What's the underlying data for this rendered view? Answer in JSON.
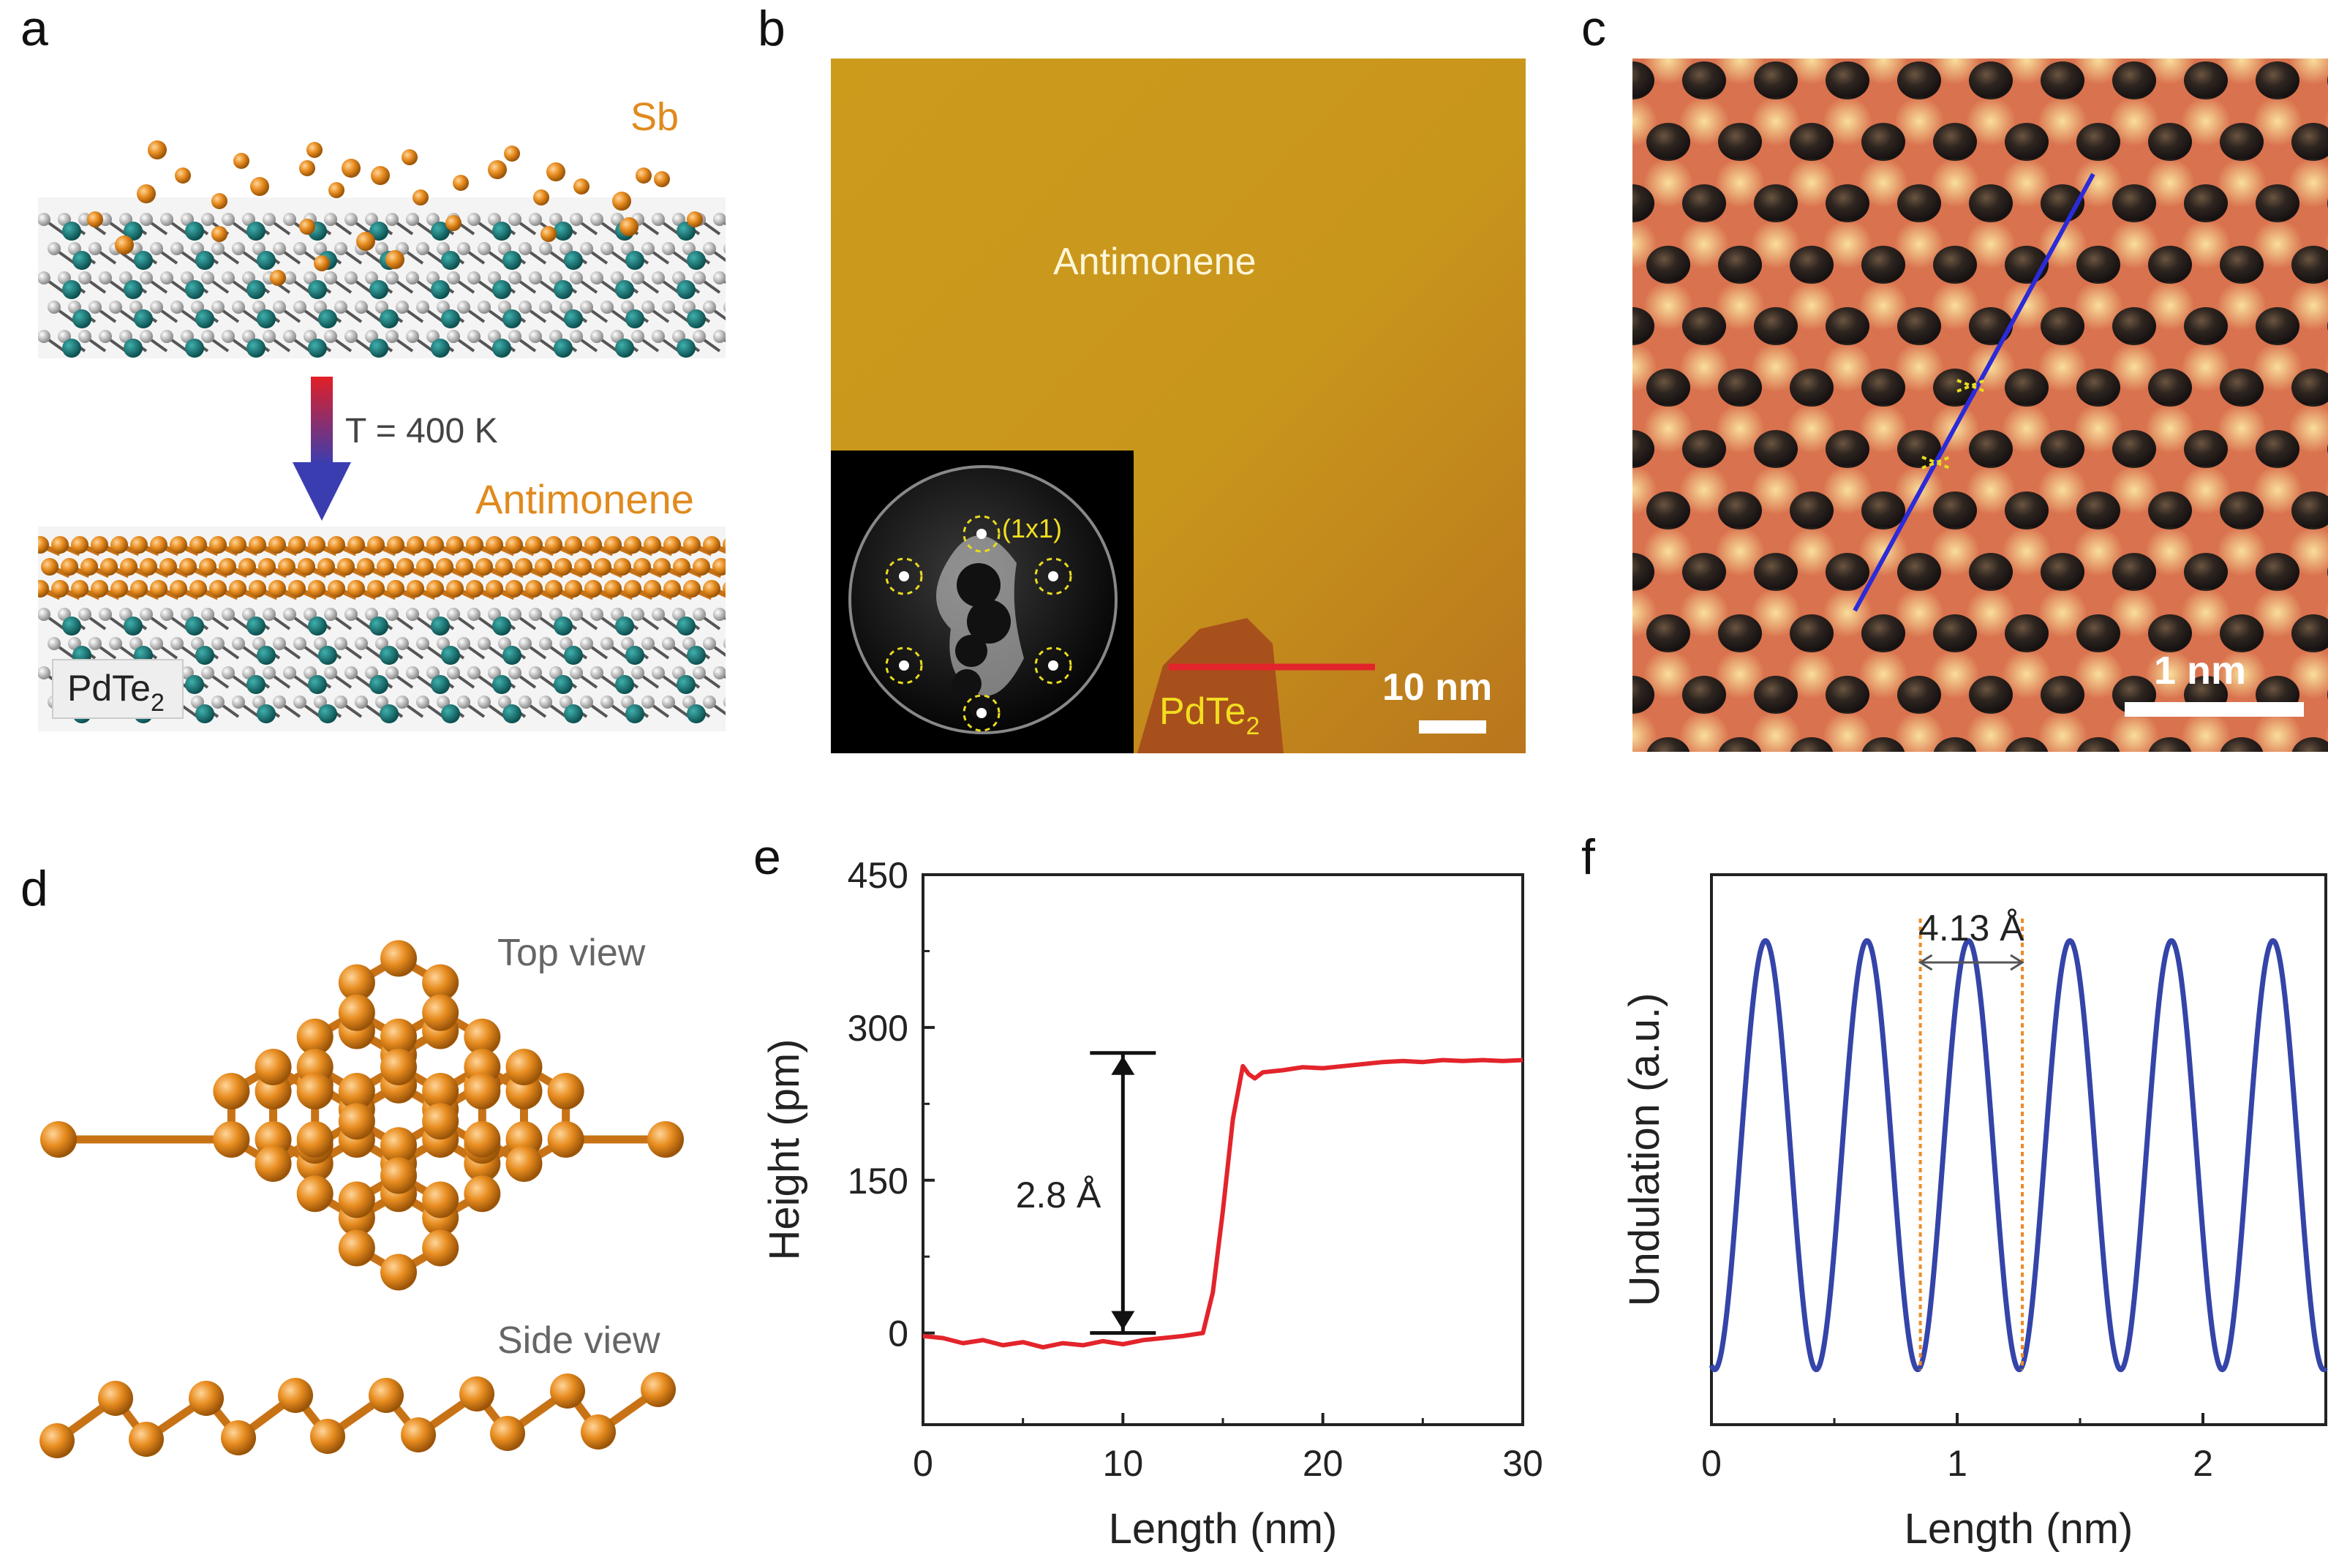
{
  "panels": {
    "a": {
      "label": "a",
      "sb_label": "Sb",
      "temperature_label": "T = 400 K",
      "antimonene_label": "Antimonene",
      "substrate_main": "PdTe",
      "substrate_sub": "2"
    },
    "b": {
      "label": "b",
      "film_label": "Antimonene",
      "substrate_main": "PdTe",
      "substrate_sub": "2",
      "scalebar_label": "10 nm",
      "leed_label": "(1x1)"
    },
    "c": {
      "label": "c",
      "scalebar_label": "1 nm"
    },
    "d": {
      "label": "d",
      "top_view_label": "Top view",
      "side_view_label": "Side view"
    },
    "e": {
      "label": "e",
      "step_annotation": "2.8 Å"
    },
    "f": {
      "label": "f",
      "spacing_annotation": "4.13 Å"
    }
  },
  "colors": {
    "sb_orange": "#e08a1e",
    "pdte2_teal": "#1e7e7e",
    "te_grey": "#cfcfcf",
    "profile_red": "#e3242b",
    "profile_blue": "#3444a8",
    "marker_orange": "#f08a24"
  },
  "chart_data": [
    {
      "type": "line",
      "panel": "e",
      "title": "",
      "xlabel": "Length (nm)",
      "ylabel": "Height (pm)",
      "xlim": [
        0,
        30
      ],
      "ylim": [
        -90,
        450
      ],
      "xticks": [
        0,
        10,
        20,
        30
      ],
      "yticks": [
        0,
        150,
        300,
        450
      ],
      "series": [
        {
          "name": "height profile",
          "x": [
            0,
            1,
            2,
            3,
            4,
            5,
            6,
            7,
            8,
            9,
            10,
            11,
            12,
            13,
            14,
            14.5,
            15,
            15.5,
            16,
            16.3,
            16.6,
            17,
            18,
            19,
            20,
            21,
            22,
            23,
            24,
            25,
            26,
            27,
            28,
            29,
            30
          ],
          "y": [
            -3,
            -5,
            -10,
            -7,
            -12,
            -9,
            -14,
            -10,
            -12,
            -8,
            -11,
            -7,
            -5,
            -3,
            0,
            40,
            120,
            210,
            262,
            254,
            250,
            256,
            258,
            261,
            260,
            262,
            264,
            266,
            267,
            266,
            268,
            267,
            268,
            267,
            268
          ]
        }
      ],
      "annotation": {
        "text": "2.8 Å",
        "from_y": 0,
        "to_y": 275,
        "at_x": 10
      }
    },
    {
      "type": "line",
      "panel": "f",
      "title": "",
      "xlabel": "Length (nm)",
      "ylabel": "Undulation (a.u.)",
      "xlim": [
        0,
        2.5
      ],
      "ylim": [
        0,
        1
      ],
      "xticks": [
        0,
        1,
        2
      ],
      "yticks": [],
      "series": [
        {
          "name": "undulation",
          "period": 0.413,
          "peak_start": 0.22,
          "amplitude": 0.78,
          "baseline": 0.1,
          "x_start": 0,
          "x_end": 2.5
        }
      ],
      "markers": [
        0.85,
        1.265
      ],
      "annotation": {
        "text": "4.13 Å",
        "from_x": 0.85,
        "to_x": 1.265
      }
    }
  ]
}
